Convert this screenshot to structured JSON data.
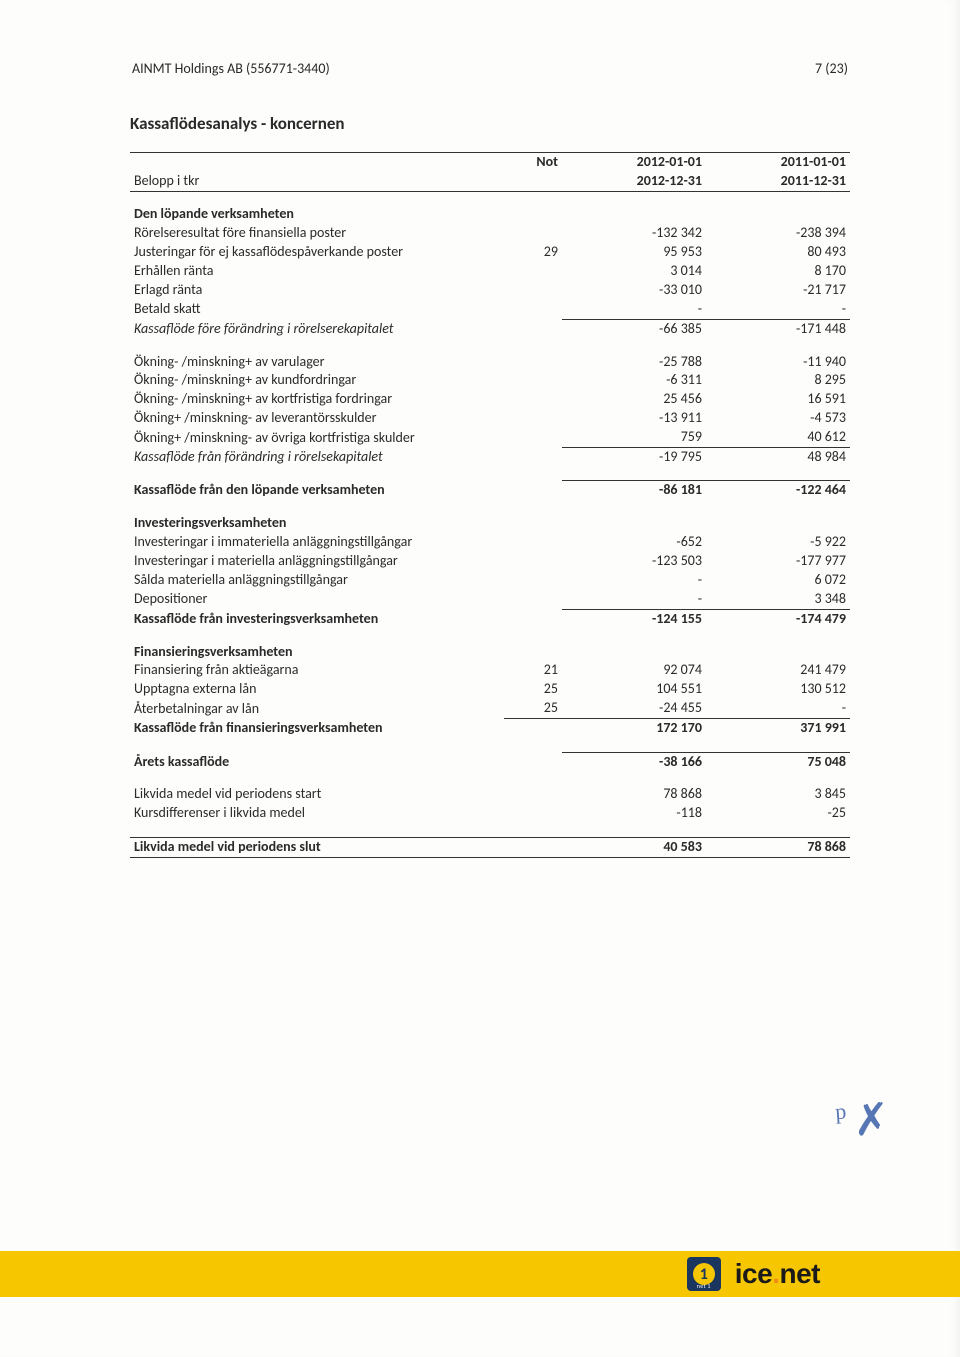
{
  "header": {
    "company": "AINMT Holdings AB (556771-3440)",
    "page": "7 (23)"
  },
  "title": "Kassaflödesanalys - koncernen",
  "columns": {
    "label": "Belopp i tkr",
    "not": "Not",
    "y1_top": "2012-01-01",
    "y1_bot": "2012-12-31",
    "y2_top": "2011-01-01",
    "y2_bot": "2011-12-31"
  },
  "sections": [
    {
      "heading": "Den löpande verksamheten",
      "rows": [
        {
          "label": "Rörelseresultat före finansiella poster",
          "not": "",
          "y1": "-132 342",
          "y2": "-238 394"
        },
        {
          "label": "Justeringar för ej kassaflödespåverkande poster",
          "not": "29",
          "y1": "95 953",
          "y2": "80 493"
        },
        {
          "label": "Erhållen ränta",
          "not": "",
          "y1": "3 014",
          "y2": "8 170"
        },
        {
          "label": "Erlagd ränta",
          "not": "",
          "y1": "-33 010",
          "y2": "-21 717"
        },
        {
          "label": "Betald skatt",
          "not": "",
          "y1": "-",
          "y2": "-"
        },
        {
          "label": "Kassaflöde före förändring i rörelserekapitalet",
          "not": "",
          "y1": "-66 385",
          "y2": "-171 448",
          "italic": true,
          "sumtop": true
        }
      ]
    },
    {
      "rows": [
        {
          "label": "Ökning- /minskning+ av varulager",
          "not": "",
          "y1": "-25 788",
          "y2": "-11 940"
        },
        {
          "label": "Ökning- /minskning+ av kundfordringar",
          "not": "",
          "y1": "-6 311",
          "y2": "8 295"
        },
        {
          "label": "Ökning- /minskning+ av kortfristiga fordringar",
          "not": "",
          "y1": "25 456",
          "y2": "16 591"
        },
        {
          "label": "Ökning+ /minskning- av leverantörsskulder",
          "not": "",
          "y1": "-13 911",
          "y2": "-4 573"
        },
        {
          "label": "Ökning+ /minskning- av övriga kortfristiga skulder",
          "not": "",
          "y1": "759",
          "y2": "40 612"
        },
        {
          "label": "Kassaflöde från förändring i rörelsekapitalet",
          "not": "",
          "y1": "-19 795",
          "y2": "48 984",
          "italic": true,
          "sumtop": true
        }
      ]
    },
    {
      "rows": [
        {
          "label": "Kassaflöde från den löpande verksamheten",
          "not": "",
          "y1": "-86 181",
          "y2": "-122 464",
          "bold": true,
          "sumtop": true
        }
      ]
    },
    {
      "heading": "Investeringsverksamheten",
      "rows": [
        {
          "label": "Investeringar i immateriella anläggningstillgångar",
          "not": "",
          "y1": "-652",
          "y2": "-5 922"
        },
        {
          "label": "Investeringar i materiella anläggningstillgångar",
          "not": "",
          "y1": "-123 503",
          "y2": "-177 977"
        },
        {
          "label": "Sålda materiella anläggningstillgångar",
          "not": "",
          "y1": "-",
          "y2": "6 072"
        },
        {
          "label": "Depositioner",
          "not": "",
          "y1": "-",
          "y2": "3 348"
        },
        {
          "label": "Kassaflöde från investeringsverksamheten",
          "not": "",
          "y1": "-124 155",
          "y2": "-174 479",
          "bold": true,
          "sumtop": true
        }
      ]
    },
    {
      "heading": "Finansieringsverksamheten",
      "rows": [
        {
          "label": "Finansiering från aktieägarna",
          "not": "21",
          "y1": "92 074",
          "y2": "241 479"
        },
        {
          "label": "Upptagna externa lån",
          "not": "25",
          "y1": "104 551",
          "y2": "130 512"
        },
        {
          "label": "Återbetalningar av lån",
          "not": "25",
          "y1": "-24 455",
          "y2": "-",
          "notborder": true
        },
        {
          "label": "Kassaflöde från finansieringsverksamheten",
          "not": "",
          "y1": "172 170",
          "y2": "371 991",
          "bold": true,
          "sumtop": true
        }
      ]
    },
    {
      "rows": [
        {
          "label": "Årets kassaflöde",
          "not": "",
          "y1": "-38 166",
          "y2": "75 048",
          "bold": true,
          "sumtop": true
        }
      ]
    },
    {
      "rows": [
        {
          "label": "Likvida medel vid periodens start",
          "not": "",
          "y1": "78 868",
          "y2": "3 845"
        },
        {
          "label": "Kursdifferenser i likvida medel",
          "not": "",
          "y1": "-118",
          "y2": "-25"
        }
      ]
    }
  ],
  "final": {
    "label": "Likvida medel vid periodens slut",
    "y1": "40 583",
    "y2": "78 868"
  },
  "footer": {
    "badge_digit": "1",
    "badge_sub": "net 1",
    "logo_pre": "ice",
    "logo_dot": ".",
    "logo_post": "net"
  }
}
